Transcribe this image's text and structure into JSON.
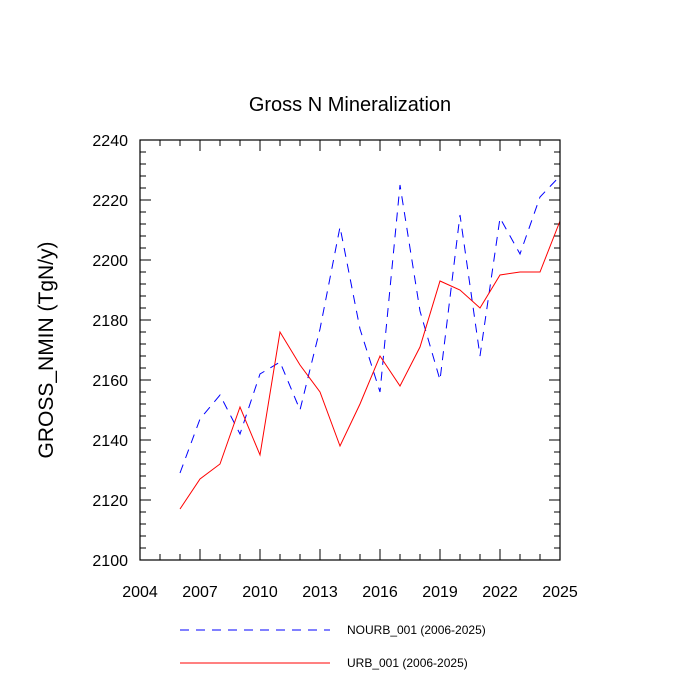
{
  "chart_data": {
    "type": "line",
    "title": "Gross N Mineralization",
    "xlabel": "",
    "ylabel": "GROSS_NMIN  (TgN/y)",
    "xlim": [
      2004,
      2025
    ],
    "ylim": [
      2100,
      2240
    ],
    "x_ticks": [
      2004,
      2007,
      2010,
      2013,
      2016,
      2019,
      2022,
      2025
    ],
    "x_tick_labels": [
      "2004",
      "2007",
      "2010",
      "2013",
      "2016",
      "2019",
      "2022",
      "2025"
    ],
    "y_ticks": [
      2100,
      2120,
      2140,
      2160,
      2180,
      2200,
      2220,
      2240
    ],
    "y_tick_labels": [
      "2100",
      "2120",
      "2140",
      "2160",
      "2180",
      "2200",
      "2220",
      "2240"
    ],
    "x": [
      2006,
      2007,
      2008,
      2009,
      2010,
      2011,
      2012,
      2013,
      2014,
      2015,
      2016,
      2017,
      2018,
      2019,
      2020,
      2021,
      2022,
      2023,
      2024,
      2025
    ],
    "series": [
      {
        "name": "NOURB_001 (2006-2025)",
        "color": "#0000ff",
        "dash": "dashed",
        "values": [
          2129,
          2147,
          2155,
          2142,
          2162,
          2166,
          2150,
          2177,
          2211,
          2177,
          2156,
          2225,
          2183,
          2160,
          2215,
          2168,
          2214,
          2202,
          2221,
          2228
        ]
      },
      {
        "name": "URB_001 (2006-2025)",
        "color": "#ff0000",
        "dash": "solid",
        "values": [
          2117,
          2127,
          2132,
          2151,
          2135,
          2176,
          2165,
          2156,
          2138,
          2152,
          2168,
          2158,
          2171,
          2193,
          2190,
          2184,
          2195,
          2196,
          2196,
          2213
        ]
      }
    ]
  }
}
